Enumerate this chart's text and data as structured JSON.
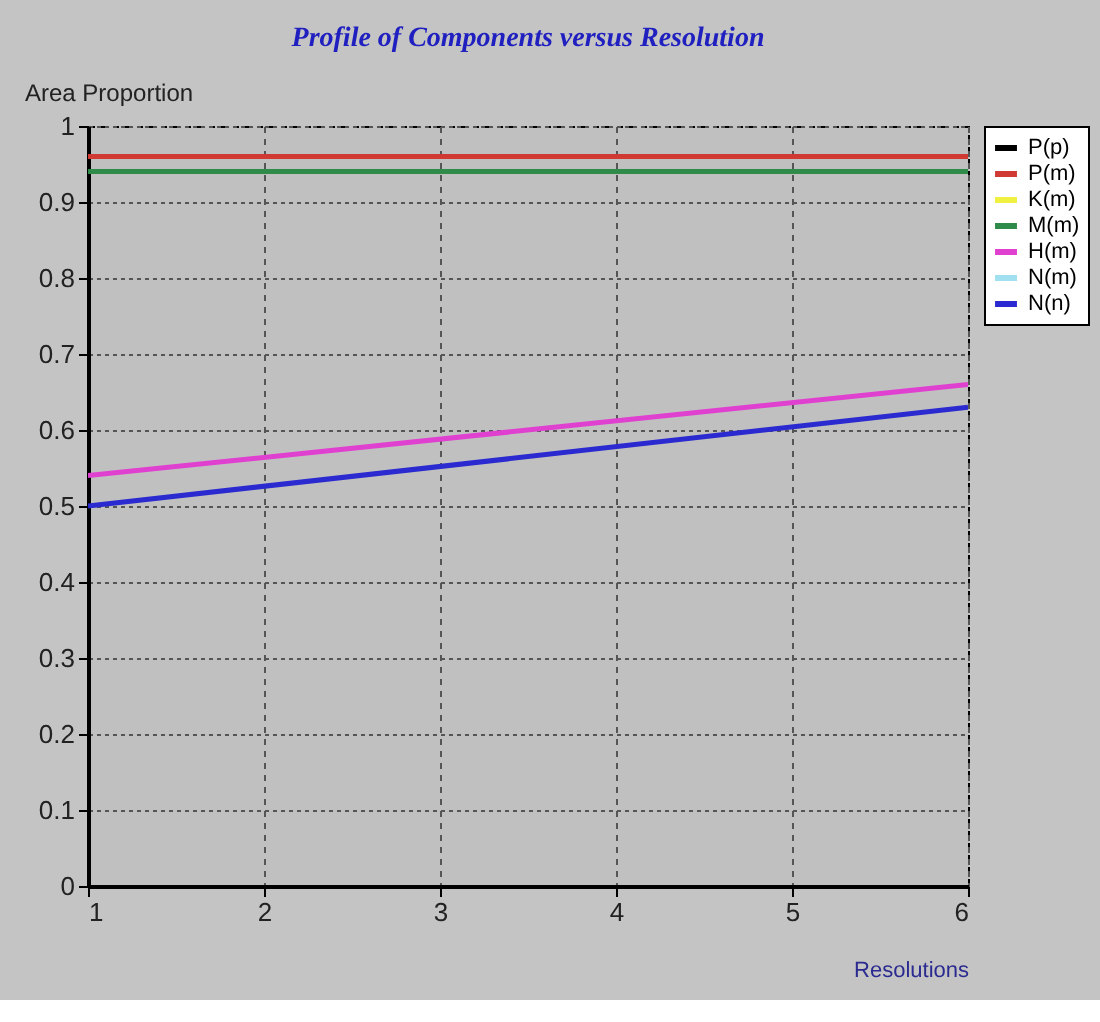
{
  "chart_data": {
    "type": "line",
    "title": "Profile of Components versus Resolution",
    "xlabel": "Resolutions",
    "ylabel": "Area Proportion",
    "x": [
      1,
      6
    ],
    "xlim": [
      1,
      6
    ],
    "xticks": [
      1,
      2,
      3,
      4,
      5,
      6
    ],
    "ylim": [
      0,
      1
    ],
    "yticks": [
      0,
      0.1,
      0.2,
      0.3,
      0.4,
      0.5,
      0.6,
      0.7,
      0.8,
      0.9,
      1
    ],
    "grid": true,
    "legend": "top right",
    "line_style": "solid",
    "marker": "none",
    "series": [
      {
        "name": "P(p)",
        "color": "#000000",
        "values": [
          null,
          null
        ]
      },
      {
        "name": "P(m)",
        "color": "#d03a32",
        "values": [
          0.96,
          0.96
        ]
      },
      {
        "name": "K(m)",
        "color": "#f0f040",
        "values": [
          null,
          null
        ]
      },
      {
        "name": "M(m)",
        "color": "#2e8b4a",
        "values": [
          0.94,
          0.94
        ]
      },
      {
        "name": "H(m)",
        "color": "#e040d0",
        "values": [
          0.54,
          0.66
        ]
      },
      {
        "name": "N(m)",
        "color": "#a0e0f0",
        "values": [
          null,
          null
        ]
      },
      {
        "name": "N(n)",
        "color": "#2a2ad0",
        "values": [
          0.5,
          0.63
        ]
      }
    ]
  }
}
